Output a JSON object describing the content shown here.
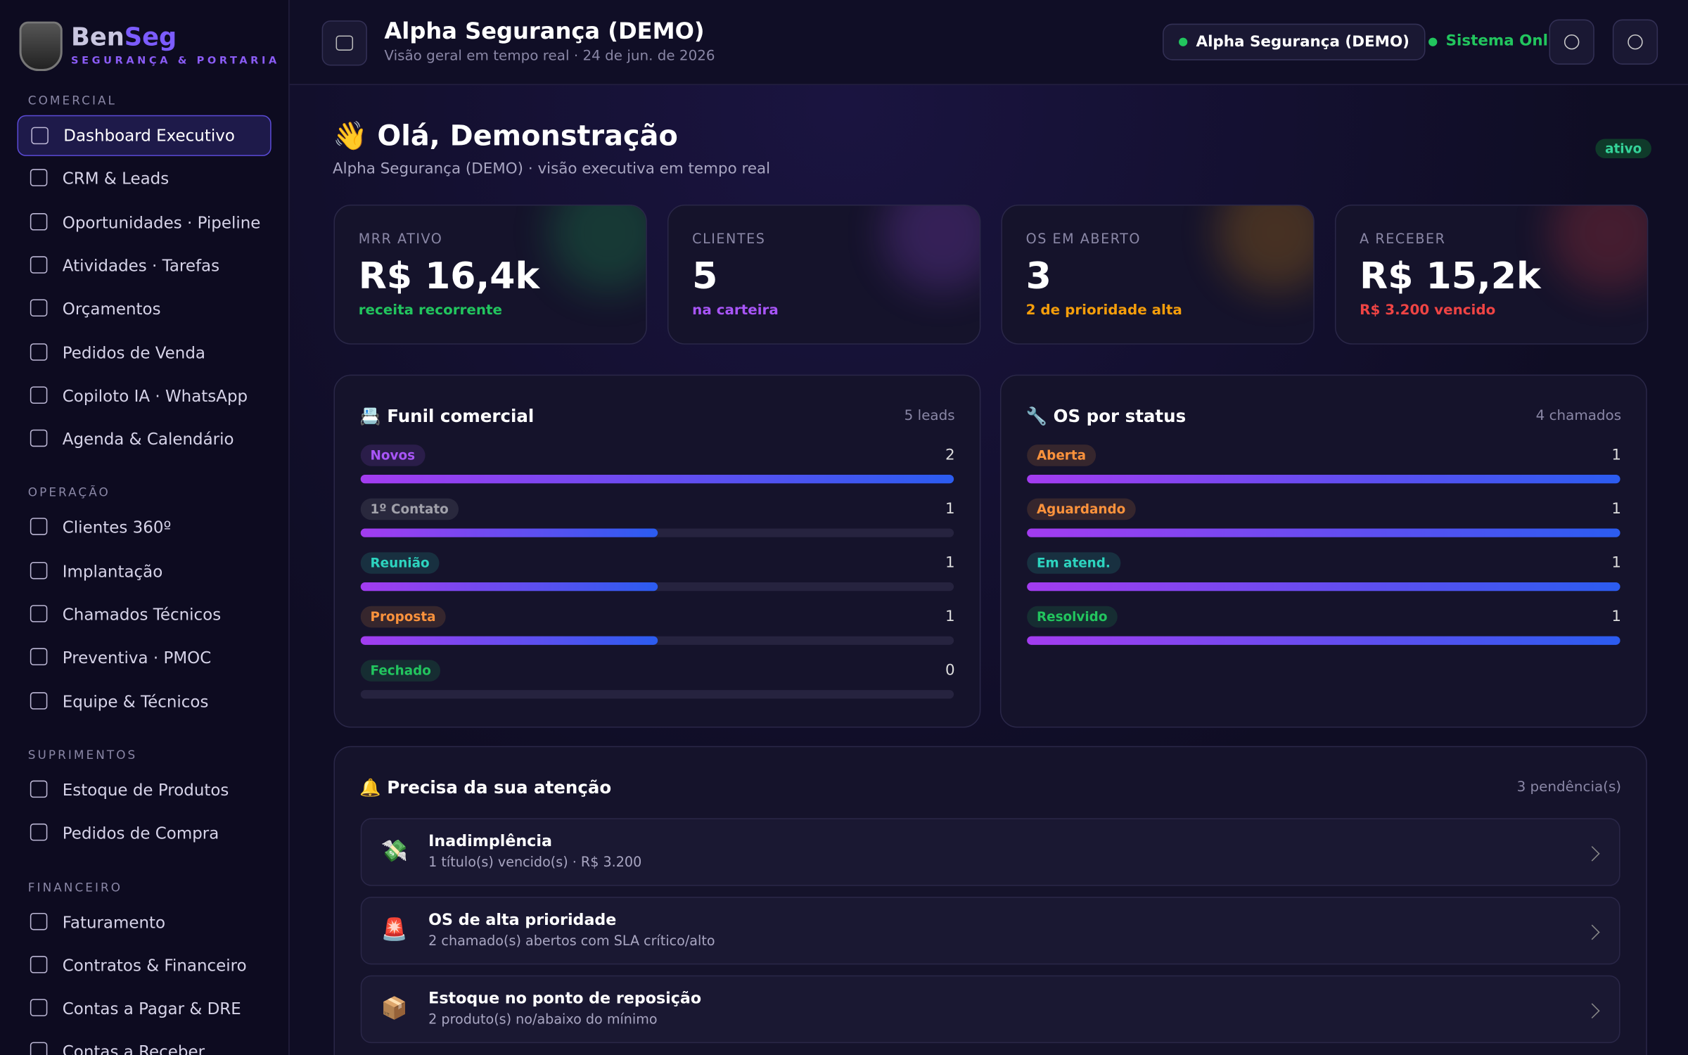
{
  "sidebar": {
    "brand": {
      "name_a": "Ben",
      "name_b": "Seg",
      "tagline": "SEGURANÇA & PORTARIA"
    },
    "sections": [
      {
        "title": "COMERCIAL",
        "items": [
          "Dashboard Executivo",
          "CRM & Leads",
          "Oportunidades · Pipeline",
          "Atividades · Tarefas",
          "Orçamentos",
          "Pedidos de Venda",
          "Copiloto IA · WhatsApp",
          "Agenda & Calendário"
        ]
      },
      {
        "title": "OPERAÇÃO",
        "items": [
          "Clientes 360º",
          "Implantação",
          "Chamados Técnicos",
          "Preventiva · PMOC",
          "Equipe & Técnicos"
        ]
      },
      {
        "title": "SUPRIMENTOS",
        "items": [
          "Estoque de Produtos",
          "Pedidos de Compra"
        ]
      },
      {
        "title": "FINANCEIRO",
        "items": [
          "Faturamento",
          "Contratos & Financeiro",
          "Contas a Pagar & DRE",
          "Contas a Receber"
        ]
      }
    ]
  },
  "header": {
    "title": "Alpha Segurança (DEMO)",
    "subtitle": "Visão geral em tempo real · 24 de jun. de 2026",
    "tenant": "Alpha Segurança (DEMO)",
    "status": "Sistema Online"
  },
  "greeting": {
    "title": "👋 Olá, Demonstração",
    "subtitle": "Alpha Segurança (DEMO) · visão executiva em tempo real",
    "badge": "ativo"
  },
  "kpis": [
    {
      "label": "MRR ATIVO",
      "value": "R$ 16,4k",
      "note": "receita recorrente",
      "color": "#22c55e"
    },
    {
      "label": "CLIENTES",
      "value": "5",
      "note": "na carteira",
      "color": "#a855f7"
    },
    {
      "label": "OS EM ABERTO",
      "value": "3",
      "note": "2 de prioridade alta",
      "color": "#f59e0b"
    },
    {
      "label": "A RECEBER",
      "value": "R$ 15,2k",
      "note": "R$ 3.200 vencido",
      "color": "#ef4444"
    }
  ],
  "panels": [
    {
      "title": "📇 Funil comercial",
      "meta": "5 leads",
      "rows": [
        {
          "label": "Novos",
          "value": 2,
          "color": "#a855f7"
        },
        {
          "label": "1º Contato",
          "value": 1,
          "color": "#a1a1aa"
        },
        {
          "label": "Reunião",
          "value": 1,
          "color": "#2dd4bf"
        },
        {
          "label": "Proposta",
          "value": 1,
          "color": "#fb923c"
        },
        {
          "label": "Fechado",
          "value": 0,
          "color": "#22c55e"
        }
      ]
    },
    {
      "title": "🔧 OS por status",
      "meta": "4 chamados",
      "rows": [
        {
          "label": "Aberta",
          "value": 1,
          "color": "#fb923c"
        },
        {
          "label": "Aguardando",
          "value": 1,
          "color": "#fb923c"
        },
        {
          "label": "Em atend.",
          "value": 1,
          "color": "#2dd4bf"
        },
        {
          "label": "Resolvido",
          "value": 1,
          "color": "#22c55e"
        }
      ]
    }
  ],
  "attention": {
    "title": "🔔 Precisa da sua atenção",
    "meta": "3 pendência(s)",
    "items": [
      {
        "icon": "💸",
        "title": "Inadimplência",
        "detail": "1 título(s) vencido(s) · R$ 3.200"
      },
      {
        "icon": "🚨",
        "title": "OS de alta prioridade",
        "detail": "2 chamado(s) abertos com SLA crítico/alto"
      },
      {
        "icon": "📦",
        "title": "Estoque no ponto de reposição",
        "detail": "2 produto(s) no/abaixo do mínimo"
      }
    ]
  }
}
